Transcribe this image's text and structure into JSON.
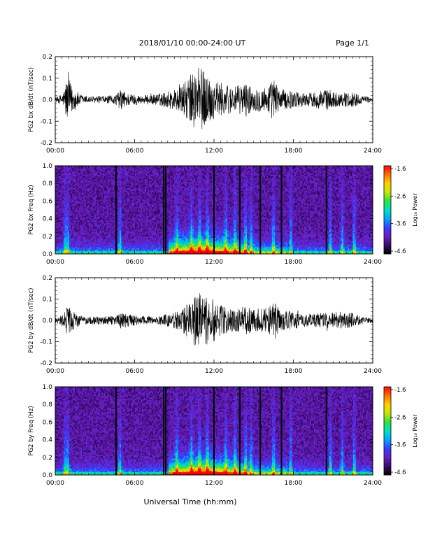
{
  "header": {
    "title": "2018/01/10  00:00-24:00 UT",
    "page": "Page 1/1"
  },
  "xlabel": "Universal Time (hh:mm)",
  "time_ticks": [
    "00:00",
    "06:00",
    "12:00",
    "18:00",
    "24:00"
  ],
  "colorbar": {
    "label": "Log₁₀ Power",
    "ticks": [
      "-1.6",
      "-2.6",
      "-3.6",
      "-4.6"
    ],
    "range": [
      -4.6,
      -1.6
    ],
    "colormap": [
      "#000000",
      "#3b0a6e",
      "#6a1fc0",
      "#3a3cff",
      "#00a8ff",
      "#00e0c0",
      "#30e040",
      "#c8e800",
      "#ffd000",
      "#ff7000",
      "#ff0000"
    ]
  },
  "chart_data": [
    {
      "type": "line",
      "ylabel": "PG2 bx dB/dt (nT/sec)",
      "xlim": [
        0,
        24
      ],
      "ylim": [
        -0.2,
        0.2
      ],
      "yticks": [
        "0.2",
        "0.1",
        "0.0",
        "-0.1",
        "-0.2"
      ],
      "x_unit": "hours UT",
      "envelope": [
        [
          0.0,
          0.01
        ],
        [
          0.6,
          0.03
        ],
        [
          0.8,
          0.09
        ],
        [
          1.0,
          0.1
        ],
        [
          1.3,
          0.06
        ],
        [
          2.0,
          0.02
        ],
        [
          3.0,
          0.015
        ],
        [
          4.5,
          0.02
        ],
        [
          5.0,
          0.05
        ],
        [
          5.5,
          0.03
        ],
        [
          6.5,
          0.02
        ],
        [
          7.5,
          0.025
        ],
        [
          8.0,
          0.03
        ],
        [
          8.5,
          0.04
        ],
        [
          9.5,
          0.06
        ],
        [
          10.0,
          0.1
        ],
        [
          10.5,
          0.14
        ],
        [
          11.0,
          0.15
        ],
        [
          11.5,
          0.12
        ],
        [
          12.0,
          0.09
        ],
        [
          12.5,
          0.08
        ],
        [
          13.0,
          0.07
        ],
        [
          13.5,
          0.06
        ],
        [
          14.0,
          0.07
        ],
        [
          14.5,
          0.08
        ],
        [
          15.0,
          0.05
        ],
        [
          15.5,
          0.06
        ],
        [
          16.0,
          0.06
        ],
        [
          16.5,
          0.1
        ],
        [
          17.0,
          0.05
        ],
        [
          18.0,
          0.04
        ],
        [
          19.0,
          0.03
        ],
        [
          20.5,
          0.05
        ],
        [
          21.5,
          0.03
        ],
        [
          22.5,
          0.04
        ],
        [
          23.0,
          0.02
        ],
        [
          24.0,
          0.01
        ]
      ]
    },
    {
      "type": "heatmap",
      "ylabel": "PG2 bx Freq (Hz)",
      "xlim": [
        0,
        24
      ],
      "ylim": [
        0.0,
        1.0
      ],
      "yticks": [
        "1.0",
        "0.8",
        "0.6",
        "0.4",
        "0.2",
        "0.0"
      ],
      "zlabel": "Log₁₀ Power",
      "zlim": [
        -4.6,
        -1.6
      ]
    },
    {
      "type": "line",
      "ylabel": "PG2 by dB/dt (nT/sec)",
      "xlim": [
        0,
        24
      ],
      "ylim": [
        -0.2,
        0.2
      ],
      "yticks": [
        "0.2",
        "0.1",
        "0.0",
        "-0.1",
        "-0.2"
      ],
      "x_unit": "hours UT",
      "envelope": [
        [
          0.0,
          0.01
        ],
        [
          0.6,
          0.03
        ],
        [
          0.8,
          0.06
        ],
        [
          1.0,
          0.07
        ],
        [
          1.3,
          0.05
        ],
        [
          2.0,
          0.02
        ],
        [
          3.0,
          0.02
        ],
        [
          4.5,
          0.02
        ],
        [
          5.0,
          0.04
        ],
        [
          5.5,
          0.03
        ],
        [
          6.5,
          0.02
        ],
        [
          7.5,
          0.02
        ],
        [
          8.5,
          0.03
        ],
        [
          9.5,
          0.05
        ],
        [
          10.0,
          0.08
        ],
        [
          10.5,
          0.12
        ],
        [
          11.0,
          0.13
        ],
        [
          11.5,
          0.12
        ],
        [
          12.0,
          0.1
        ],
        [
          12.5,
          0.07
        ],
        [
          13.0,
          0.06
        ],
        [
          13.5,
          0.05
        ],
        [
          14.0,
          0.06
        ],
        [
          14.5,
          0.07
        ],
        [
          15.0,
          0.05
        ],
        [
          15.5,
          0.06
        ],
        [
          16.0,
          0.05
        ],
        [
          16.5,
          0.1
        ],
        [
          17.0,
          0.05
        ],
        [
          18.0,
          0.04
        ],
        [
          19.0,
          0.03
        ],
        [
          21.0,
          0.04
        ],
        [
          22.5,
          0.04
        ],
        [
          23.0,
          0.02
        ],
        [
          24.0,
          0.01
        ]
      ]
    },
    {
      "type": "heatmap",
      "ylabel": "PG2 by Freq (Hz)",
      "xlim": [
        0,
        24
      ],
      "ylim": [
        0.0,
        1.0
      ],
      "yticks": [
        "1.0",
        "0.8",
        "0.6",
        "0.4",
        "0.2",
        "0.0"
      ],
      "zlabel": "Log₁₀ Power",
      "zlim": [
        -4.6,
        -1.6
      ]
    }
  ],
  "spectral_features": {
    "data_gaps_hours": [
      4.6,
      8.2,
      8.35,
      12.0,
      13.95,
      15.5,
      17.1,
      20.5
    ],
    "burst_hours": [
      0.75,
      0.95,
      4.9,
      9.2,
      10.3,
      10.9,
      11.5,
      12.9,
      13.6,
      14.4,
      14.8,
      16.5,
      17.8,
      20.8,
      21.7,
      22.6
    ]
  }
}
